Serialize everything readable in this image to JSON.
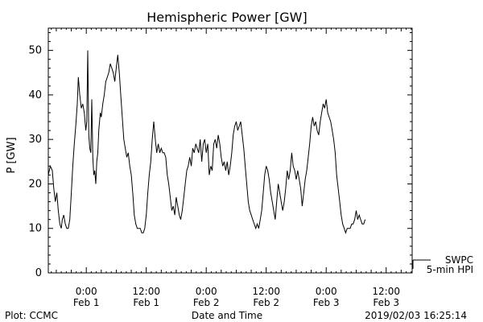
{
  "chart_data": {
    "type": "line",
    "title": "Hemispheric Power [GW]",
    "ylabel": "P [GW]",
    "xlabel": "Date and Time",
    "ylim": [
      0,
      55
    ],
    "yticks": [
      0,
      10,
      20,
      30,
      40,
      50
    ],
    "x_unit": "hours after 2019-02-01 00:00 UT",
    "xlim": [
      -7.6,
      65.2
    ],
    "xticks": [
      {
        "x": 0,
        "time": "0:00",
        "date": "Feb 1"
      },
      {
        "x": 12,
        "time": "12:00",
        "date": "Feb 1"
      },
      {
        "x": 24,
        "time": "0:00",
        "date": "Feb 2"
      },
      {
        "x": 36,
        "time": "12:00",
        "date": "Feb 2"
      },
      {
        "x": 48,
        "time": "0:00",
        "date": "Feb 3"
      },
      {
        "x": 60,
        "time": "12:00",
        "date": "Feb 3"
      }
    ],
    "grid": false,
    "legend": {
      "placement": "right-bottom",
      "entries": [
        "SWPC",
        "5-min HPI"
      ]
    },
    "series": [
      {
        "name": "5-min HPI",
        "color": "#000000",
        "points": [
          [
            -7.6,
            22
          ],
          [
            -7.2,
            24
          ],
          [
            -6.8,
            23
          ],
          [
            -6.5,
            19
          ],
          [
            -6.2,
            16
          ],
          [
            -5.9,
            18
          ],
          [
            -5.6,
            14
          ],
          [
            -5.3,
            11
          ],
          [
            -5.0,
            10
          ],
          [
            -4.8,
            12
          ],
          [
            -4.5,
            13
          ],
          [
            -4.2,
            11
          ],
          [
            -3.9,
            10
          ],
          [
            -3.6,
            10
          ],
          [
            -3.3,
            12
          ],
          [
            -3.0,
            18
          ],
          [
            -2.7,
            24
          ],
          [
            -2.4,
            29
          ],
          [
            -2.1,
            33
          ],
          [
            -1.8,
            38
          ],
          [
            -1.6,
            44
          ],
          [
            -1.3,
            40
          ],
          [
            -1.0,
            37
          ],
          [
            -0.7,
            38
          ],
          [
            -0.4,
            36
          ],
          [
            -0.1,
            32
          ],
          [
            0.1,
            34
          ],
          [
            0.3,
            50
          ],
          [
            0.5,
            31
          ],
          [
            0.7,
            28
          ],
          [
            0.9,
            27
          ],
          [
            1.1,
            39
          ],
          [
            1.3,
            26
          ],
          [
            1.5,
            22
          ],
          [
            1.7,
            23
          ],
          [
            1.9,
            20
          ],
          [
            2.1,
            25
          ],
          [
            2.3,
            27
          ],
          [
            2.5,
            32
          ],
          [
            2.8,
            36
          ],
          [
            3.0,
            35
          ],
          [
            3.3,
            38
          ],
          [
            3.6,
            40
          ],
          [
            3.9,
            43
          ],
          [
            4.2,
            44
          ],
          [
            4.5,
            45
          ],
          [
            4.8,
            47
          ],
          [
            5.1,
            46
          ],
          [
            5.4,
            45
          ],
          [
            5.7,
            43
          ],
          [
            6.0,
            46
          ],
          [
            6.3,
            49
          ],
          [
            6.6,
            45
          ],
          [
            6.9,
            40
          ],
          [
            7.2,
            35
          ],
          [
            7.5,
            30
          ],
          [
            7.8,
            28
          ],
          [
            8.1,
            26
          ],
          [
            8.4,
            27
          ],
          [
            8.7,
            24
          ],
          [
            9.0,
            22
          ],
          [
            9.3,
            18
          ],
          [
            9.6,
            13
          ],
          [
            9.9,
            11
          ],
          [
            10.2,
            10
          ],
          [
            10.5,
            10
          ],
          [
            10.8,
            10
          ],
          [
            11.1,
            9
          ],
          [
            11.4,
            9
          ],
          [
            11.7,
            10
          ],
          [
            12.0,
            13
          ],
          [
            12.3,
            18
          ],
          [
            12.6,
            22
          ],
          [
            12.9,
            25
          ],
          [
            13.2,
            30
          ],
          [
            13.5,
            34
          ],
          [
            13.8,
            30
          ],
          [
            14.1,
            27
          ],
          [
            14.4,
            29
          ],
          [
            14.7,
            27
          ],
          [
            15.0,
            28
          ],
          [
            15.3,
            27
          ],
          [
            15.6,
            27
          ],
          [
            15.9,
            26
          ],
          [
            16.2,
            22
          ],
          [
            16.5,
            20
          ],
          [
            16.8,
            17
          ],
          [
            17.1,
            14
          ],
          [
            17.4,
            15
          ],
          [
            17.7,
            13
          ],
          [
            18.0,
            17
          ],
          [
            18.3,
            15
          ],
          [
            18.6,
            13
          ],
          [
            18.9,
            12
          ],
          [
            19.2,
            14
          ],
          [
            19.5,
            17
          ],
          [
            19.8,
            20
          ],
          [
            20.1,
            23
          ],
          [
            20.4,
            24
          ],
          [
            20.7,
            26
          ],
          [
            21.0,
            24
          ],
          [
            21.3,
            28
          ],
          [
            21.6,
            27
          ],
          [
            21.9,
            29
          ],
          [
            22.2,
            28
          ],
          [
            22.5,
            27
          ],
          [
            22.8,
            30
          ],
          [
            23.1,
            25
          ],
          [
            23.4,
            29
          ],
          [
            23.7,
            30
          ],
          [
            24.0,
            27
          ],
          [
            24.3,
            29
          ],
          [
            24.6,
            22
          ],
          [
            24.9,
            24
          ],
          [
            25.2,
            23
          ],
          [
            25.5,
            29
          ],
          [
            25.8,
            30
          ],
          [
            26.1,
            28
          ],
          [
            26.4,
            31
          ],
          [
            26.7,
            29
          ],
          [
            27.0,
            26
          ],
          [
            27.3,
            24
          ],
          [
            27.6,
            25
          ],
          [
            27.9,
            23
          ],
          [
            28.2,
            25
          ],
          [
            28.5,
            22
          ],
          [
            28.8,
            24
          ],
          [
            29.1,
            27
          ],
          [
            29.4,
            31
          ],
          [
            29.7,
            33
          ],
          [
            30.0,
            34
          ],
          [
            30.3,
            32
          ],
          [
            30.6,
            33
          ],
          [
            30.9,
            34
          ],
          [
            31.2,
            31
          ],
          [
            31.5,
            28
          ],
          [
            31.8,
            24
          ],
          [
            32.1,
            20
          ],
          [
            32.4,
            16
          ],
          [
            32.7,
            14
          ],
          [
            33.0,
            13
          ],
          [
            33.3,
            12
          ],
          [
            33.6,
            11
          ],
          [
            33.9,
            10
          ],
          [
            34.2,
            11
          ],
          [
            34.5,
            10
          ],
          [
            34.8,
            12
          ],
          [
            35.1,
            14
          ],
          [
            35.4,
            18
          ],
          [
            35.7,
            22
          ],
          [
            36.0,
            24
          ],
          [
            36.3,
            23
          ],
          [
            36.6,
            21
          ],
          [
            36.9,
            18
          ],
          [
            37.2,
            16
          ],
          [
            37.5,
            14
          ],
          [
            37.8,
            12
          ],
          [
            38.1,
            16
          ],
          [
            38.4,
            20
          ],
          [
            38.7,
            18
          ],
          [
            39.0,
            16
          ],
          [
            39.3,
            14
          ],
          [
            39.6,
            16
          ],
          [
            39.9,
            19
          ],
          [
            40.2,
            23
          ],
          [
            40.5,
            21
          ],
          [
            40.8,
            23
          ],
          [
            41.1,
            27
          ],
          [
            41.4,
            24
          ],
          [
            41.7,
            23
          ],
          [
            42.0,
            21
          ],
          [
            42.3,
            23
          ],
          [
            42.6,
            21
          ],
          [
            42.9,
            19
          ],
          [
            43.2,
            15
          ],
          [
            43.5,
            18
          ],
          [
            43.8,
            21
          ],
          [
            44.1,
            23
          ],
          [
            44.4,
            26
          ],
          [
            44.7,
            29
          ],
          [
            45.0,
            33
          ],
          [
            45.3,
            35
          ],
          [
            45.6,
            33
          ],
          [
            45.9,
            34
          ],
          [
            46.2,
            32
          ],
          [
            46.5,
            31
          ],
          [
            46.8,
            34
          ],
          [
            47.1,
            36
          ],
          [
            47.4,
            38
          ],
          [
            47.7,
            37
          ],
          [
            48.0,
            39
          ],
          [
            48.3,
            36
          ],
          [
            48.6,
            35
          ],
          [
            48.9,
            34
          ],
          [
            49.2,
            32
          ],
          [
            49.5,
            30
          ],
          [
            49.8,
            27
          ],
          [
            50.1,
            22
          ],
          [
            50.4,
            19
          ],
          [
            50.7,
            16
          ],
          [
            51.0,
            13
          ],
          [
            51.3,
            11
          ],
          [
            51.6,
            10
          ],
          [
            51.9,
            9
          ],
          [
            52.2,
            10
          ],
          [
            52.5,
            10
          ],
          [
            52.8,
            10
          ],
          [
            53.1,
            11
          ],
          [
            53.4,
            11
          ],
          [
            53.7,
            12
          ],
          [
            54.0,
            14
          ],
          [
            54.3,
            12
          ],
          [
            54.6,
            13
          ],
          [
            54.9,
            12
          ],
          [
            55.2,
            11
          ],
          [
            55.5,
            11
          ],
          [
            55.8,
            12
          ]
        ]
      }
    ]
  },
  "footer": {
    "plot_credit": "Plot: CCMC",
    "timestamp": "2019/02/03 16:25:14"
  }
}
